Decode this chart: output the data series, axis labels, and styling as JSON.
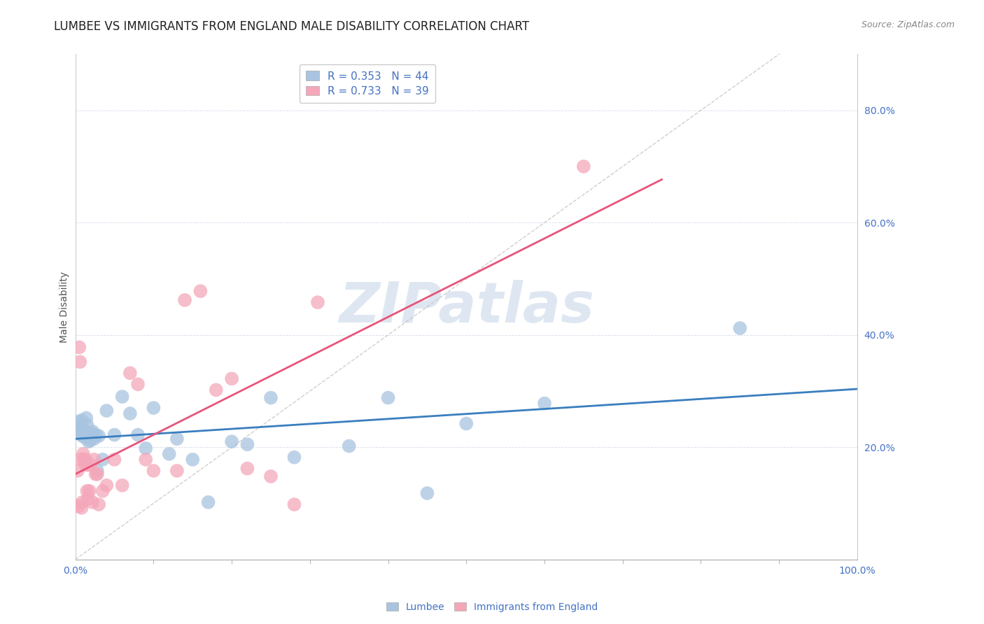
{
  "title": "LUMBEE VS IMMIGRANTS FROM ENGLAND MALE DISABILITY CORRELATION CHART",
  "source": "Source: ZipAtlas.com",
  "ylabel": "Male Disability",
  "xlim": [
    0.0,
    1.0
  ],
  "ylim": [
    0.0,
    0.9
  ],
  "yticks": [
    0.2,
    0.4,
    0.6,
    0.8
  ],
  "ytick_labels": [
    "20.0%",
    "40.0%",
    "60.0%",
    "80.0%"
  ],
  "lumbee_R": "0.353",
  "lumbee_N": "44",
  "england_R": "0.733",
  "england_N": "39",
  "lumbee_color": "#a8c4e0",
  "england_color": "#f4a7b9",
  "lumbee_line_color": "#3a7ebf",
  "england_line_color": "#e8547a",
  "ref_line_color": "#c8c0c0",
  "watermark": "ZIPatlas",
  "watermark_color": "#c8d8e8",
  "background_color": "#ffffff",
  "lumbee_x": [
    0.004,
    0.005,
    0.006,
    0.007,
    0.008,
    0.009,
    0.01,
    0.011,
    0.012,
    0.013,
    0.014,
    0.015,
    0.016,
    0.017,
    0.018,
    0.019,
    0.02,
    0.022,
    0.024,
    0.026,
    0.028,
    0.03,
    0.035,
    0.04,
    0.05,
    0.06,
    0.07,
    0.08,
    0.09,
    0.1,
    0.12,
    0.13,
    0.15,
    0.17,
    0.2,
    0.22,
    0.25,
    0.28,
    0.35,
    0.4,
    0.45,
    0.5,
    0.6,
    0.85
  ],
  "lumbee_y": [
    0.245,
    0.235,
    0.228,
    0.222,
    0.248,
    0.232,
    0.232,
    0.218,
    0.225,
    0.22,
    0.252,
    0.24,
    0.218,
    0.21,
    0.225,
    0.212,
    0.225,
    0.228,
    0.215,
    0.222,
    0.158,
    0.22,
    0.178,
    0.265,
    0.222,
    0.29,
    0.26,
    0.222,
    0.198,
    0.27,
    0.188,
    0.215,
    0.178,
    0.102,
    0.21,
    0.205,
    0.288,
    0.182,
    0.202,
    0.288,
    0.118,
    0.242,
    0.278,
    0.412
  ],
  "england_x": [
    0.003,
    0.004,
    0.005,
    0.006,
    0.007,
    0.008,
    0.009,
    0.01,
    0.011,
    0.012,
    0.013,
    0.014,
    0.015,
    0.016,
    0.018,
    0.02,
    0.022,
    0.024,
    0.026,
    0.028,
    0.03,
    0.035,
    0.04,
    0.05,
    0.06,
    0.07,
    0.08,
    0.09,
    0.1,
    0.13,
    0.14,
    0.16,
    0.18,
    0.2,
    0.22,
    0.25,
    0.28,
    0.31,
    0.65
  ],
  "england_y": [
    0.158,
    0.095,
    0.378,
    0.352,
    0.178,
    0.092,
    0.102,
    0.188,
    0.178,
    0.172,
    0.178,
    0.168,
    0.122,
    0.108,
    0.122,
    0.168,
    0.102,
    0.178,
    0.152,
    0.152,
    0.098,
    0.122,
    0.132,
    0.178,
    0.132,
    0.332,
    0.312,
    0.178,
    0.158,
    0.158,
    0.462,
    0.478,
    0.302,
    0.322,
    0.162,
    0.148,
    0.098,
    0.458,
    0.7
  ],
  "title_fontsize": 12,
  "axis_label_fontsize": 10,
  "tick_fontsize": 10,
  "legend_fontsize": 11
}
